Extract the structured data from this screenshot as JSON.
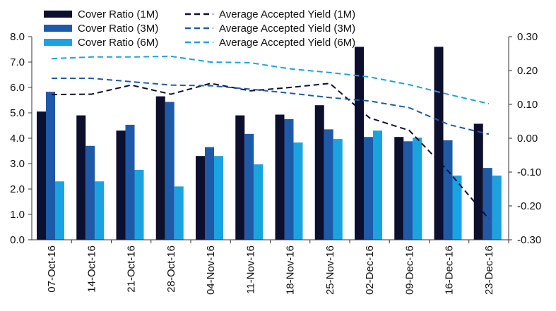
{
  "chart_data": {
    "type": "bar_line",
    "categories": [
      "07-Oct-16",
      "14-Oct-16",
      "21-Oct-16",
      "28-Oct-16",
      "04-Nov-16",
      "11-Nov-16",
      "18-Nov-16",
      "25-Nov-16",
      "02-Dec-16",
      "09-Dec-16",
      "16-Dec-16",
      "23-Dec-16"
    ],
    "series": [
      {
        "name": "Cover Ratio (1M)",
        "color": "#0c0f2e",
        "kind": "bar",
        "values": [
          5.05,
          4.9,
          4.3,
          5.65,
          3.3,
          4.9,
          4.93,
          5.3,
          7.6,
          4.05,
          7.6,
          4.57
        ]
      },
      {
        "name": "Cover Ratio (3M)",
        "color": "#1f5aa8",
        "kind": "bar",
        "values": [
          5.83,
          3.7,
          4.53,
          5.43,
          3.65,
          4.17,
          4.75,
          4.35,
          4.05,
          3.88,
          3.92,
          2.83
        ]
      },
      {
        "name": "Cover Ratio (6M)",
        "color": "#1aa3e0",
        "kind": "bar",
        "values": [
          2.3,
          2.3,
          2.75,
          2.1,
          3.3,
          2.97,
          3.83,
          3.97,
          4.3,
          4.02,
          2.53,
          2.53
        ]
      },
      {
        "name": "Average Accepted Yield (1M)",
        "color": "#0c0f2e",
        "kind": "line",
        "axis": "y2",
        "values": [
          0.129,
          0.13,
          0.157,
          0.13,
          0.162,
          0.14,
          0.15,
          0.162,
          0.06,
          0.023,
          -0.1,
          -0.238
        ]
      },
      {
        "name": "Average Accepted Yield (3M)",
        "color": "#1f5aa8",
        "kind": "line",
        "axis": "y2",
        "values": [
          0.177,
          0.177,
          0.167,
          0.157,
          0.155,
          0.145,
          0.133,
          0.12,
          0.11,
          0.09,
          0.04,
          0.012
        ]
      },
      {
        "name": "Average Accepted Yield (6M)",
        "color": "#1aa3e0",
        "kind": "line",
        "axis": "y2",
        "values": [
          0.235,
          0.24,
          0.24,
          0.242,
          0.225,
          0.223,
          0.205,
          0.194,
          0.181,
          0.158,
          0.129,
          0.102
        ]
      }
    ],
    "ylim": [
      0,
      8
    ],
    "yticks": [
      {
        "value": 0,
        "label": "0.0"
      },
      {
        "value": 1,
        "label": "1.0"
      },
      {
        "value": 2,
        "label": "2.0"
      },
      {
        "value": 3,
        "label": "3.0"
      },
      {
        "value": 4,
        "label": "4.0"
      },
      {
        "value": 5,
        "label": "5.0"
      },
      {
        "value": 6,
        "label": "6.0"
      },
      {
        "value": 7,
        "label": "7.0"
      },
      {
        "value": 8,
        "label": "8.0"
      }
    ],
    "y2lim": [
      -0.3,
      0.3
    ],
    "y2ticks": [
      {
        "value": -0.3,
        "label": "-0.30"
      },
      {
        "value": -0.2,
        "label": "-0.20"
      },
      {
        "value": -0.1,
        "label": "-0.10"
      },
      {
        "value": 0,
        "label": "0.00"
      },
      {
        "value": 0.1,
        "label": "0.10"
      },
      {
        "value": 0.2,
        "label": "0.20"
      },
      {
        "value": 0.3,
        "label": "0.30"
      }
    ]
  }
}
